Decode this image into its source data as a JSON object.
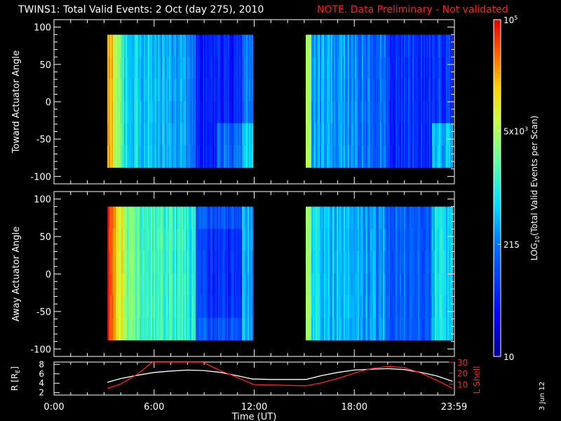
{
  "title": "TWINS1: Total Valid Events:  2 Oct (day 275), 2010",
  "note": "NOTE. Data Preliminary - Not validated",
  "stamp": "3 Jun 12",
  "colors": {
    "background": "#000000",
    "foreground": "#ffffff",
    "note": "#ff2020",
    "lshell": "#ff2020",
    "radius": "#ffffff"
  },
  "chart_data": [
    {
      "type": "heatmap",
      "panel": "top",
      "ylabel": "Toward Actuator Angle",
      "ylim": [
        -110,
        110
      ],
      "yticks": [
        100,
        50,
        0,
        -50,
        -100
      ],
      "xlim_hours": [
        0,
        24
      ],
      "data_intervals_hours": [
        [
          3.2,
          11.9
        ],
        [
          15.1,
          23.9
        ]
      ],
      "angle_range": [
        -88,
        90
      ]
    },
    {
      "type": "heatmap",
      "panel": "middle",
      "ylabel": "Away Actuator Angle",
      "ylim": [
        -110,
        110
      ],
      "yticks": [
        100,
        50,
        0,
        -50,
        -100
      ],
      "xlim_hours": [
        0,
        24
      ],
      "data_intervals_hours": [
        [
          3.2,
          11.9
        ],
        [
          15.1,
          23.9
        ]
      ],
      "angle_range": [
        -88,
        90
      ]
    },
    {
      "type": "line",
      "panel": "bottom",
      "ylabel_left": "R [R",
      "ylabel_left_sub": "E",
      "ylabel_left_end": "]",
      "ylabel_right": "L Shell",
      "y_left_ticks": [
        2,
        4,
        6,
        8
      ],
      "y_left_lim": [
        1.5,
        8.5
      ],
      "y_right_ticks": [
        10,
        20,
        30
      ],
      "y_right_lim": [
        0,
        30
      ],
      "xlabel": "Time (UT)",
      "xticks": [
        "0:00",
        "6:00",
        "12:00",
        "18:00",
        "23:59"
      ],
      "xtick_hours": [
        0,
        6,
        12,
        18,
        23.98
      ],
      "series": [
        {
          "axis": "left",
          "x": [
            3.2,
            4,
            5,
            6,
            7,
            8,
            9,
            10,
            11,
            11.9,
            12,
            13,
            14,
            15,
            15.1,
            16,
            17,
            18,
            19,
            20,
            21,
            22,
            23,
            23.9
          ],
          "y": [
            4.2,
            5.0,
            5.7,
            6.3,
            6.6,
            6.8,
            6.7,
            6.3,
            5.6,
            4.9,
            4.9,
            4.8,
            4.8,
            4.8,
            4.8,
            5.6,
            6.3,
            6.8,
            7.0,
            7.1,
            6.9,
            6.3,
            5.5,
            4.4
          ]
        },
        {
          "axis": "right",
          "x": [
            3.2,
            4,
            5,
            5.9,
            8.9,
            10,
            11,
            11.9,
            12,
            13,
            14,
            15,
            15.1,
            16,
            17,
            18,
            19,
            20,
            21,
            22,
            23,
            23.9
          ],
          "y": [
            6,
            10,
            19,
            30,
            30,
            22,
            16,
            10,
            9.5,
            9.2,
            8.8,
            8.4,
            8.4,
            11,
            15,
            20,
            24,
            26,
            25,
            20,
            13,
            6
          ]
        }
      ]
    },
    {
      "type": "colorbar",
      "ylabel": "LOG",
      "ylabel_sub": "10",
      "ylabel_end": "(Total Valid Events per Scan)",
      "ticks": [
        {
          "base": "10",
          "sup": "5",
          "frac": 1.0
        },
        {
          "base": "5x10",
          "sup": "3",
          "frac": 0.67
        },
        {
          "base": "215",
          "sup": "",
          "frac": 0.333
        },
        {
          "base": "10",
          "sup": "",
          "frac": 0.0
        }
      ]
    }
  ]
}
